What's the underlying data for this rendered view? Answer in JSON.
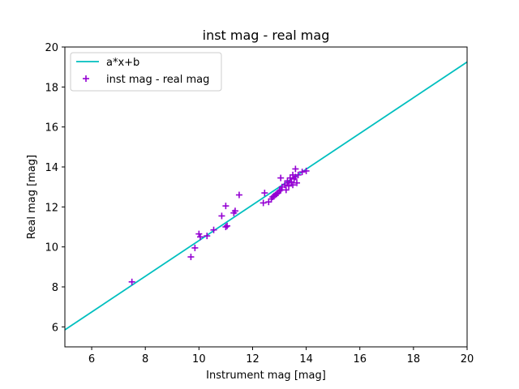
{
  "chart_data": {
    "type": "scatter",
    "title": "inst mag - real mag",
    "xlabel": "Instrument mag [mag]",
    "ylabel": "Real mag [mag]",
    "xlim": [
      5,
      20
    ],
    "ylim": [
      5,
      20
    ],
    "xticks": [
      6,
      8,
      10,
      12,
      14,
      16,
      18,
      20
    ],
    "yticks": [
      6,
      8,
      10,
      12,
      14,
      16,
      18,
      20
    ],
    "grid": false,
    "legend_position": "top-left",
    "series": [
      {
        "name": "a*x+b",
        "kind": "line",
        "color": "#00bfbf",
        "x": [
          5,
          20
        ],
        "y": [
          5.85,
          19.25
        ]
      },
      {
        "name": "inst mag - real mag",
        "kind": "scatter",
        "marker": "plus",
        "color": "#9400d3",
        "x": [
          7.5,
          9.7,
          9.85,
          10.0,
          10.05,
          10.3,
          10.55,
          10.85,
          11.0,
          11.0,
          11.05,
          11.3,
          11.35,
          11.5,
          12.4,
          12.45,
          12.6,
          12.7,
          12.75,
          12.8,
          12.85,
          12.9,
          12.95,
          13.0,
          13.05,
          13.05,
          13.1,
          13.2,
          13.25,
          13.3,
          13.3,
          13.35,
          13.4,
          13.45,
          13.5,
          13.5,
          13.55,
          13.6,
          13.6,
          13.65,
          13.7,
          13.85,
          14.0
        ],
        "y": [
          8.25,
          9.5,
          9.95,
          10.65,
          10.5,
          10.55,
          10.85,
          11.55,
          12.05,
          11.0,
          11.05,
          11.7,
          11.8,
          12.6,
          12.2,
          12.7,
          12.25,
          12.4,
          12.5,
          12.55,
          12.6,
          12.65,
          12.7,
          12.8,
          13.45,
          12.85,
          13.0,
          13.1,
          12.85,
          13.2,
          13.3,
          13.05,
          13.45,
          13.25,
          13.1,
          13.6,
          13.4,
          13.5,
          13.9,
          13.2,
          13.6,
          13.75,
          13.8
        ]
      }
    ]
  }
}
